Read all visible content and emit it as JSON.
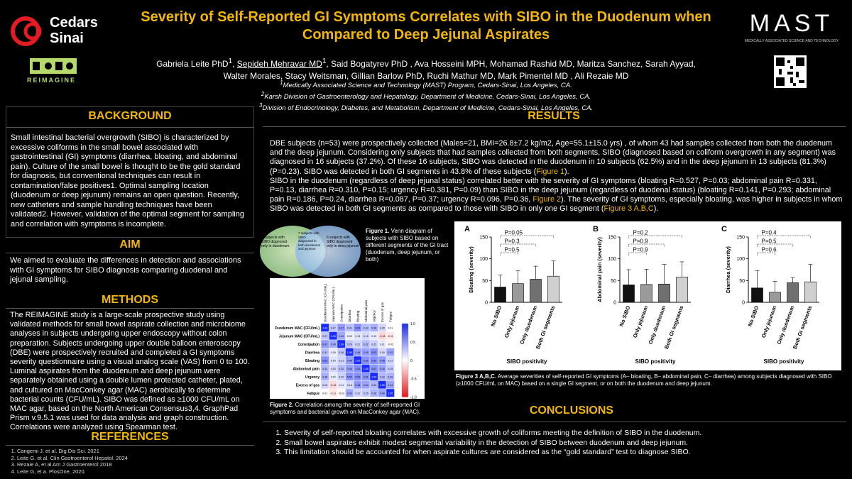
{
  "header": {
    "title": "Severity of Self-Reported GI Symptoms Correlates with SIBO in the Duodenum when Compared to Deep Jejunal Aspirates",
    "authors_line1_pre": "Gabriela Leite PhD",
    "authors_line1_u": "Sepideh Mehravar MD",
    "authors_line1_post": "Said Bogatyrev PhD , Ava Hosseini MPH, Mohamad Rashid MD, Maritza Sanchez, Sarah Ayyad,",
    "authors_line2": "Walter Morales, Stacy Weitsman, Gillian Barlow PhD, Ruchi Mathur MD, Mark Pimentel MD , Ali Rezaie MD",
    "affiliations": [
      "Medically Associated Science and Technology (MAST) Program, Cedars-Sinai, Los Angeles, CA.",
      "Karsh Division of Gastroenterology and Hepatology, Department of Medicine, Cedars-Sinai, Los Angeles, CA.",
      "Division of Endocrinology, Diabetes, and Metabolism, Department of Medicine, Cedars-Sinai, Los Angeles, CA."
    ],
    "logo_left_line1": "Cedars",
    "logo_left_line2": "Sinai",
    "logo_reimagine": "REIMAGINE",
    "logo_right": "MAST",
    "logo_right_sub": "MEDICALLY ASSOCIATED SCIENCE AND TECHNOLOGY"
  },
  "background": {
    "heading": "BACKGROUND",
    "text": "Small intestinal bacterial overgrowth (SIBO) is characterized by excessive coliforms in the small bowel associated with gastrointestinal (GI) symptoms (diarrhea, bloating, and abdominal pain). Culture of the small bowel is thought to be the gold standard for diagnosis, but conventional techniques can result in contamination/false positives1. Optimal sampling location (duodenum or deep jejunum) remains an open question. Recently, new catheters and sample handling techniques have been validated2. However, validation of the optimal segment for sampling and correlation with symptoms is incomplete."
  },
  "aim": {
    "heading": "AIM",
    "text": "We aimed to evaluate the differences in detection and associations with GI symptoms for SIBO diagnosis comparing duodenal and jejunal sampling."
  },
  "methods": {
    "heading": "METHODS",
    "text": "The REIMAGINE study is a large-scale prospective study using validated methods for small bowel aspirate collection and microbiome analyses in subjects undergoing upper endoscopy without colon preparation. Subjects undergoing upper double balloon enteroscopy (DBE) were prospectively recruited and completed a GI symptoms severity questionnaire using a visual analog scale (VAS) from 0 to 100. Luminal aspirates from the duodenum and deep jejunum were separately obtained using a double lumen protected catheter, plated, and cultured on MacConkey agar (MAC) aerobically to determine bacterial counts (CFU/mL). SIBO was defined as ≥1000 CFU/mL on MAC agar, based on the North American Consensus3,4. GraphPad Prism v.9.5.1 was used for data analysis and graph construction. Correlations were analyzed using Spearman test."
  },
  "references": {
    "heading": "REFERENCES",
    "items": [
      "Cangemi J. et al. Dig Dis Sci. 2021",
      "Leite G. et al. Clin Gastroenterol Hepatol. 2024",
      "Rezaie A, et al Am J Gastroenterol 2018",
      "Leite G, et a. PlosOne, 2020."
    ]
  },
  "results": {
    "heading": "RESULTS",
    "para1": "DBE subjects (n=53) were prospectively collected (Males=21, BMI=26.8±7.2 kg/m2, Age=55.1±15.0 yrs) , of whom 43 had samples collected from both the duodenum and the deep jejunum. Considering only subjects that had samples collected from both segments, SIBO (diagnosed based on coliform overgrowth in any segment) was diagnosed in 16 subjects (37.2%). Of these 16 subjects, SIBO was detected in the duodenum in 10 subjects (62.5%) and in the deep jejunum in 13 subjects (81.3%) (P=0.23). SIBO was detected in both GI segments in 43.8% of these subjects (",
    "para1_link": "Figure 1",
    "para1_end": ").",
    "para2": "SIBO in the duodenum (regardless of deep jejunal status) correlated better with the severity of GI symptoms (bloating R=0.527, P=0.03; abdominal pain R=0.331, P=0.13, diarrhea R=0.310, P=0.15; urgency R=0.381, P=0.09) than SIBO in the deep jejunum (regardless of duodenal status) (bloating R=0.141, P=0.293; abdominal pain R=0.186, P=0.24, diarrhea R=0.087, P=0.37; urgency R=0.096, P=0.36, ",
    "para2_link": "Figure 2",
    "para2_mid": "). The severity of GI symptoms, especially bloating, was higher in subjects in whom SIBO was detected in both GI segments as compared to those with SIBO in only one GI segment (",
    "para2_link2": "Figure 3 A,B,C",
    "para2_end": ")."
  },
  "venn": {
    "left": "3 subjects with SIBO diagnosed only in duodenum",
    "mid": "7 subjects with SIBO diagnosed in both duodenum and jejunum",
    "right": "6 subjects with SIBO diagnosed only in deep jejunum",
    "caption_bold": "Figure 1.",
    "caption": " Venn diagram of subjects with SIBO based on different segments of the GI tract (duodenum, deep jejunum, or both)"
  },
  "fig2": {
    "caption_bold": "Figure 2.",
    "caption": " Correlation among the severity of self-reported GI symptoms and bacterial growth on MacConkey agar (MAC)."
  },
  "fig3": {
    "caption_bold": "Figure 3 A,B,C.",
    "caption": " Average severities of self-reported GI symptoms (A– bloating, B– abdominal pain, C– diarrhea) among subjects diagnosed with SIBO (≥1000 CFU/mL on MAC) based on a single GI segment, or on both the duodenum and deep jejunum."
  },
  "conclusions": {
    "heading": "CONCLUSIONS",
    "items": [
      "Severity of self-reported bloating correlates with excessive growth of coliforms meeting the definition of SIBO in the duodenum.",
      "Small bowel aspirates exhibit modest segmental variability in the detection of SIBO between duodenum and deep jejunum.",
      "This limitation should be accounted for when aspirate cultures are considered as the “gold standard” test to diagnose SIBO."
    ]
  },
  "chart_data": [
    {
      "type": "table",
      "title": "",
      "rows": [
        "Duodenum MAC (CFU/mL)",
        "Jejunum MAC (CFU/mL)",
        "Constipation",
        "Diarrhea",
        "Bloating",
        "Abdominal pain",
        "Urgency",
        "Excess of gas",
        "Fatigue"
      ],
      "columns": [
        "Duodenum MAC (CFU/mL)",
        "Jejunum MAC (CFU/mL)",
        "Constipation",
        "Diarrhea",
        "Bloating",
        "Abdominal pain",
        "Urgency",
        "Excess of gas",
        "Fatigue"
      ],
      "values": [
        [
          1.0,
          0.27,
          0.47,
          0.31,
          0.53,
          0.33,
          0.38,
          0.2,
          0.01
        ],
        [
          0.27,
          1.0,
          0.4,
          0.09,
          0.14,
          0.19,
          0.1,
          -0.18,
          -0.11
        ],
        [
          0.47,
          0.4,
          1.0,
          0.26,
          0.21,
          0.32,
          0.22,
          0.11,
          -0.03
        ],
        [
          0.31,
          0.09,
          0.26,
          1.0,
          0.46,
          0.45,
          0.52,
          0.18,
          0.42
        ],
        [
          0.53,
          0.14,
          0.21,
          0.46,
          1.0,
          0.52,
          0.53,
          0.48,
          0.21
        ],
        [
          0.33,
          0.19,
          0.32,
          0.45,
          0.52,
          1.0,
          0.51,
          0.44,
          0.25
        ],
        [
          0.38,
          0.1,
          0.22,
          0.52,
          0.53,
          0.51,
          1.0,
          0.34,
          0.36
        ],
        [
          0.2,
          -0.18,
          0.11,
          0.18,
          0.48,
          0.44,
          0.34,
          1.0,
          0.44
        ],
        [
          0.01,
          -0.11,
          -0.03,
          0.42,
          0.21,
          0.25,
          0.36,
          0.44,
          1.0
        ]
      ],
      "colorbar": [
        "1.0",
        "0.5",
        "0",
        "-0.5",
        "-1.0"
      ]
    },
    {
      "type": "bar",
      "panel": "A",
      "ylabel": "Bloating (severity)",
      "xlabel": "SIBO positivity",
      "categories": [
        "No SIBO",
        "Only jejunum",
        "Only duodenum",
        "Both GI segments"
      ],
      "values": [
        35,
        43,
        53,
        60
      ],
      "errors": [
        28,
        30,
        30,
        35
      ],
      "colors": [
        "#111111",
        "#9a9a9a",
        "#707070",
        "#d0d0d0"
      ],
      "ylim": [
        0,
        150
      ],
      "yticks": [
        "0",
        "50",
        "100",
        "150"
      ],
      "pvalues": [
        "P=0.05",
        "P=0.3",
        "P=0.5"
      ]
    },
    {
      "type": "bar",
      "panel": "B",
      "ylabel": "Abdominal pain (severity)",
      "xlabel": "SIBO positivity",
      "categories": [
        "No SIBO",
        "Only jejunum",
        "Only duodenum",
        "Both GI segments"
      ],
      "values": [
        40,
        41,
        42,
        58
      ],
      "errors": [
        35,
        35,
        45,
        35
      ],
      "colors": [
        "#111111",
        "#9a9a9a",
        "#707070",
        "#d0d0d0"
      ],
      "ylim": [
        0,
        150
      ],
      "yticks": [
        "0",
        "50",
        "100",
        "150"
      ],
      "pvalues": [
        "P=0.2",
        "P=0.9",
        "P=0.9"
      ]
    },
    {
      "type": "bar",
      "panel": "C",
      "ylabel": "Diarrhea (severity)",
      "xlabel": "SIBO positivity",
      "categories": [
        "No SIBO",
        "Only jejunum",
        "Only duodenum",
        "Both GI segments"
      ],
      "values": [
        33,
        23,
        45,
        47
      ],
      "errors": [
        40,
        25,
        12,
        40
      ],
      "colors": [
        "#111111",
        "#9a9a9a",
        "#707070",
        "#d0d0d0"
      ],
      "ylim": [
        0,
        150
      ],
      "yticks": [
        "0",
        "50",
        "100",
        "150"
      ],
      "pvalues": [
        "P=0.4",
        "P=0.5",
        "P=0.6"
      ]
    }
  ]
}
